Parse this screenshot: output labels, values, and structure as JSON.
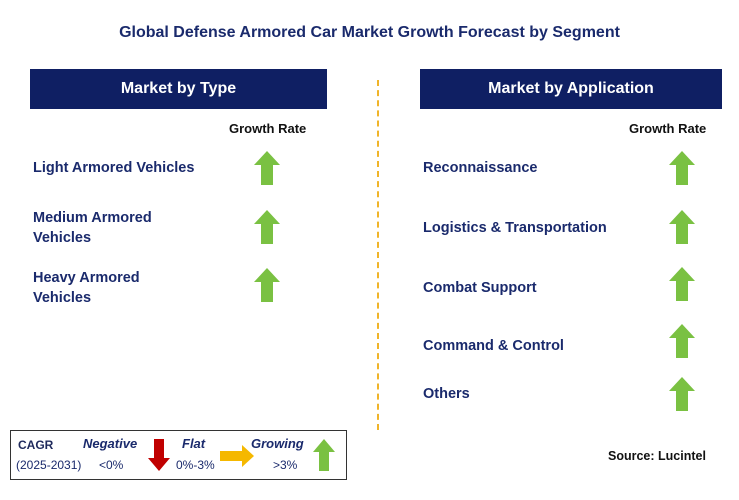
{
  "title": "Global Defense Armored Car Market Growth Forecast by Segment",
  "left_panel": {
    "header": "Market by Type",
    "growth_rate_label": "Growth Rate",
    "items": [
      {
        "line1": "Light Armored Vehicles",
        "line2": "",
        "trend": "growing"
      },
      {
        "line1": "Medium Armored",
        "line2": "Vehicles",
        "trend": "growing"
      },
      {
        "line1": "Heavy Armored",
        "line2": "Vehicles",
        "trend": "growing"
      }
    ]
  },
  "right_panel": {
    "header": "Market by Application",
    "growth_rate_label": "Growth Rate",
    "items": [
      {
        "label": "Reconnaissance",
        "trend": "growing"
      },
      {
        "label": "Logistics & Transportation",
        "trend": "growing"
      },
      {
        "label": "Combat Support",
        "trend": "growing"
      },
      {
        "label": "Command & Control",
        "trend": "growing"
      },
      {
        "label": "Others",
        "trend": "growing"
      }
    ]
  },
  "legend": {
    "cagr_label": "CAGR",
    "period": "(2025-2031)",
    "negative_label": "Negative",
    "negative_range": "<0%",
    "flat_label": "Flat",
    "flat_range": "0%-3%",
    "growing_label": "Growing",
    "growing_range": ">3%"
  },
  "source": "Source: Lucintel",
  "colors": {
    "header_bg": "#0f1f63",
    "growing": "#7ac142",
    "negative": "#c00000",
    "flat": "#f5b800",
    "divider": "#f0b429"
  }
}
